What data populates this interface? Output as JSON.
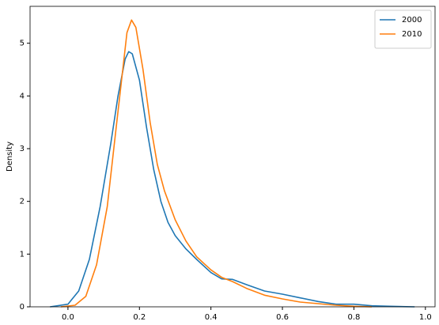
{
  "chart_data": {
    "type": "line",
    "y_label": "Density",
    "xlim": [
      -0.106,
      1.027
    ],
    "ylim": [
      0,
      5.7
    ],
    "xticks": [
      {
        "value": 0,
        "label": "0.0"
      },
      0.2,
      0.4,
      0.6,
      0.8,
      {
        "value": 1,
        "label": "1.0"
      }
    ],
    "yticks": [
      0,
      1,
      2,
      3,
      4,
      5
    ],
    "grid": false,
    "legend": "upper-right",
    "series": [
      {
        "name": "2000",
        "color": "#1f77b4",
        "x": [
          -0.05,
          0.0,
          0.03,
          0.06,
          0.09,
          0.12,
          0.14,
          0.16,
          0.17,
          0.18,
          0.2,
          0.22,
          0.24,
          0.26,
          0.28,
          0.3,
          0.33,
          0.36,
          0.4,
          0.43,
          0.46,
          0.5,
          0.55,
          0.6,
          0.65,
          0.7,
          0.75,
          0.8,
          0.85,
          0.9,
          0.97
        ],
        "values": [
          0,
          0.05,
          0.3,
          0.9,
          1.9,
          3.1,
          4.0,
          4.7,
          4.84,
          4.8,
          4.3,
          3.4,
          2.6,
          2.0,
          1.6,
          1.35,
          1.1,
          0.9,
          0.65,
          0.53,
          0.52,
          0.42,
          0.3,
          0.24,
          0.17,
          0.1,
          0.05,
          0.05,
          0.02,
          0.01,
          0
        ]
      },
      {
        "name": "2010",
        "color": "#ff7f0e",
        "x": [
          -0.02,
          0.02,
          0.05,
          0.08,
          0.11,
          0.13,
          0.15,
          0.165,
          0.178,
          0.19,
          0.21,
          0.23,
          0.25,
          0.27,
          0.3,
          0.33,
          0.36,
          0.4,
          0.43,
          0.46,
          0.5,
          0.55,
          0.6,
          0.65,
          0.7,
          0.75,
          0.8,
          0.85
        ],
        "values": [
          0,
          0.03,
          0.2,
          0.8,
          1.9,
          3.1,
          4.3,
          5.2,
          5.44,
          5.3,
          4.5,
          3.5,
          2.7,
          2.2,
          1.65,
          1.25,
          0.95,
          0.7,
          0.56,
          0.48,
          0.35,
          0.22,
          0.15,
          0.09,
          0.06,
          0.03,
          0.01,
          0
        ]
      }
    ]
  }
}
